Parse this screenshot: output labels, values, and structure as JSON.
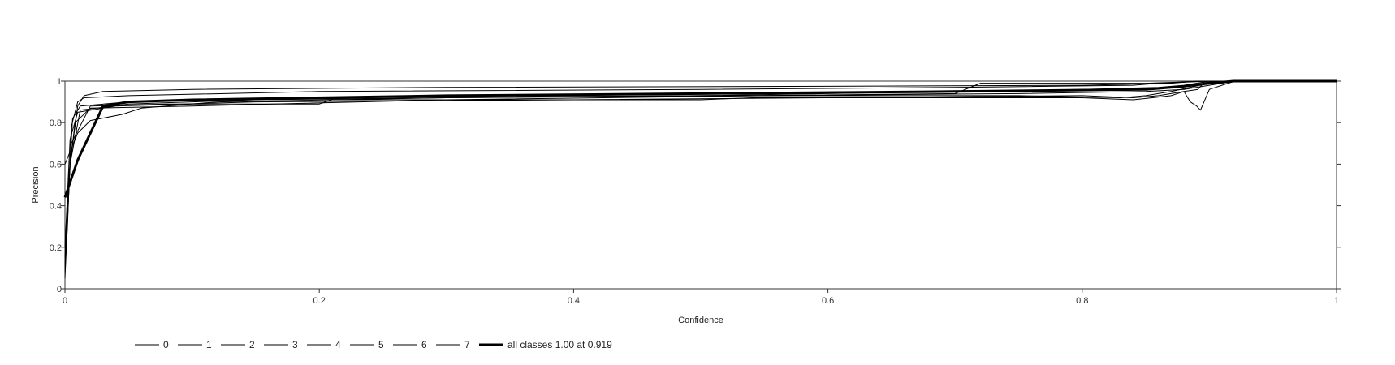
{
  "chart_data": {
    "type": "line",
    "xlabel": "Confidence",
    "ylabel": "Precision",
    "xlim": [
      0,
      1
    ],
    "ylim": [
      0,
      1
    ],
    "x_ticks": [
      "0",
      "0.2",
      "0.4",
      "0.6",
      "0.8",
      "1"
    ],
    "y_ticks": [
      "0",
      "0.2",
      "0.4",
      "0.6",
      "0.8",
      "1"
    ],
    "grid": false,
    "legend_position": "bottom-left",
    "line_color": "#000000",
    "series": [
      {
        "name": "0",
        "points": [
          [
            0,
            0.08
          ],
          [
            0.002,
            0.3
          ],
          [
            0.005,
            0.78
          ],
          [
            0.01,
            0.9
          ],
          [
            0.015,
            0.92
          ],
          [
            0.05,
            0.93
          ],
          [
            0.2,
            0.95
          ],
          [
            0.5,
            0.96
          ],
          [
            0.7,
            0.97
          ],
          [
            0.84,
            0.98
          ],
          [
            0.86,
            0.99
          ],
          [
            0.9,
            1.0
          ],
          [
            1,
            1.0
          ]
        ]
      },
      {
        "name": "1",
        "points": [
          [
            0,
            0.15
          ],
          [
            0.003,
            0.5
          ],
          [
            0.006,
            0.82
          ],
          [
            0.012,
            0.88
          ],
          [
            0.05,
            0.9
          ],
          [
            0.2,
            0.92
          ],
          [
            0.5,
            0.93
          ],
          [
            0.75,
            0.93
          ],
          [
            0.83,
            0.92
          ],
          [
            0.85,
            0.93
          ],
          [
            0.87,
            0.95
          ],
          [
            0.9,
            0.99
          ],
          [
            0.93,
            1.0
          ],
          [
            1,
            1.0
          ]
        ]
      },
      {
        "name": "2",
        "points": [
          [
            0,
            0.2
          ],
          [
            0.004,
            0.72
          ],
          [
            0.01,
            0.85
          ],
          [
            0.04,
            0.88
          ],
          [
            0.15,
            0.9
          ],
          [
            0.4,
            0.91
          ],
          [
            0.6,
            0.92
          ],
          [
            0.8,
            0.93
          ],
          [
            0.84,
            0.92
          ],
          [
            0.86,
            0.93
          ],
          [
            0.88,
            0.95
          ],
          [
            0.891,
            0.96
          ],
          [
            0.896,
            0.995
          ],
          [
            0.92,
            1.0
          ],
          [
            1,
            1.0
          ]
        ]
      },
      {
        "name": "3",
        "points": [
          [
            0,
            0.05
          ],
          [
            0.004,
            0.6
          ],
          [
            0.01,
            0.88
          ],
          [
            0.015,
            0.93
          ],
          [
            0.03,
            0.95
          ],
          [
            0.1,
            0.96
          ],
          [
            0.3,
            0.97
          ],
          [
            0.6,
            0.975
          ],
          [
            0.8,
            0.98
          ],
          [
            0.87,
            0.99
          ],
          [
            0.89,
            1.0
          ],
          [
            1,
            1.0
          ]
        ]
      },
      {
        "name": "4",
        "points": [
          [
            0,
            0.1
          ],
          [
            0.003,
            0.55
          ],
          [
            0.008,
            0.8
          ],
          [
            0.02,
            0.87
          ],
          [
            0.1,
            0.88
          ],
          [
            0.3,
            0.91
          ],
          [
            0.55,
            0.93
          ],
          [
            0.75,
            0.94
          ],
          [
            0.85,
            0.95
          ],
          [
            0.88,
            0.96
          ],
          [
            0.9,
            0.98
          ],
          [
            0.92,
            1.0
          ],
          [
            1,
            1.0
          ]
        ]
      },
      {
        "name": "5",
        "points": [
          [
            0,
            0.12
          ],
          [
            0.005,
            0.7
          ],
          [
            0.02,
            0.88
          ],
          [
            0.08,
            0.89
          ],
          [
            0.2,
            0.89
          ],
          [
            0.21,
            0.91
          ],
          [
            0.5,
            0.91
          ],
          [
            0.54,
            0.92
          ],
          [
            0.7,
            0.92
          ],
          [
            0.8,
            0.92
          ],
          [
            0.84,
            0.91
          ],
          [
            0.855,
            0.92
          ],
          [
            0.87,
            0.93
          ],
          [
            0.88,
            0.95
          ],
          [
            0.885,
            0.9
          ],
          [
            0.89,
            0.88
          ],
          [
            0.893,
            0.86
          ],
          [
            0.9,
            0.96
          ],
          [
            0.92,
            1.0
          ],
          [
            1,
            1.0
          ]
        ]
      },
      {
        "name": "6",
        "points": [
          [
            0,
            0.1
          ],
          [
            0.004,
            0.6
          ],
          [
            0.012,
            0.86
          ],
          [
            0.05,
            0.89
          ],
          [
            0.15,
            0.91
          ],
          [
            0.3,
            0.92
          ],
          [
            0.54,
            0.93
          ],
          [
            0.7,
            0.94
          ],
          [
            0.72,
            0.99
          ],
          [
            0.8,
            0.99
          ],
          [
            0.85,
            0.99
          ],
          [
            0.9,
            1.0
          ],
          [
            1,
            1.0
          ]
        ]
      },
      {
        "name": "7",
        "points": [
          [
            0,
            0.6
          ],
          [
            0.01,
            0.75
          ],
          [
            0.02,
            0.81
          ],
          [
            0.045,
            0.84
          ],
          [
            0.06,
            0.87
          ],
          [
            0.12,
            0.9
          ],
          [
            0.3,
            0.92
          ],
          [
            0.5,
            0.93
          ],
          [
            0.7,
            0.95
          ],
          [
            0.8,
            0.96
          ],
          [
            0.86,
            0.97
          ],
          [
            0.88,
            0.98
          ],
          [
            0.9,
            1.0
          ],
          [
            1,
            1.0
          ]
        ]
      },
      {
        "name": "all classes 1.00 at 0.919",
        "bold": true,
        "points": [
          [
            0,
            0.44
          ],
          [
            0.01,
            0.62
          ],
          [
            0.03,
            0.88
          ],
          [
            0.05,
            0.9
          ],
          [
            0.1,
            0.91
          ],
          [
            0.3,
            0.93
          ],
          [
            0.5,
            0.94
          ],
          [
            0.7,
            0.95
          ],
          [
            0.85,
            0.96
          ],
          [
            0.88,
            0.975
          ],
          [
            0.9,
            0.99
          ],
          [
            0.919,
            1.0
          ],
          [
            1,
            1.0
          ]
        ]
      }
    ]
  }
}
